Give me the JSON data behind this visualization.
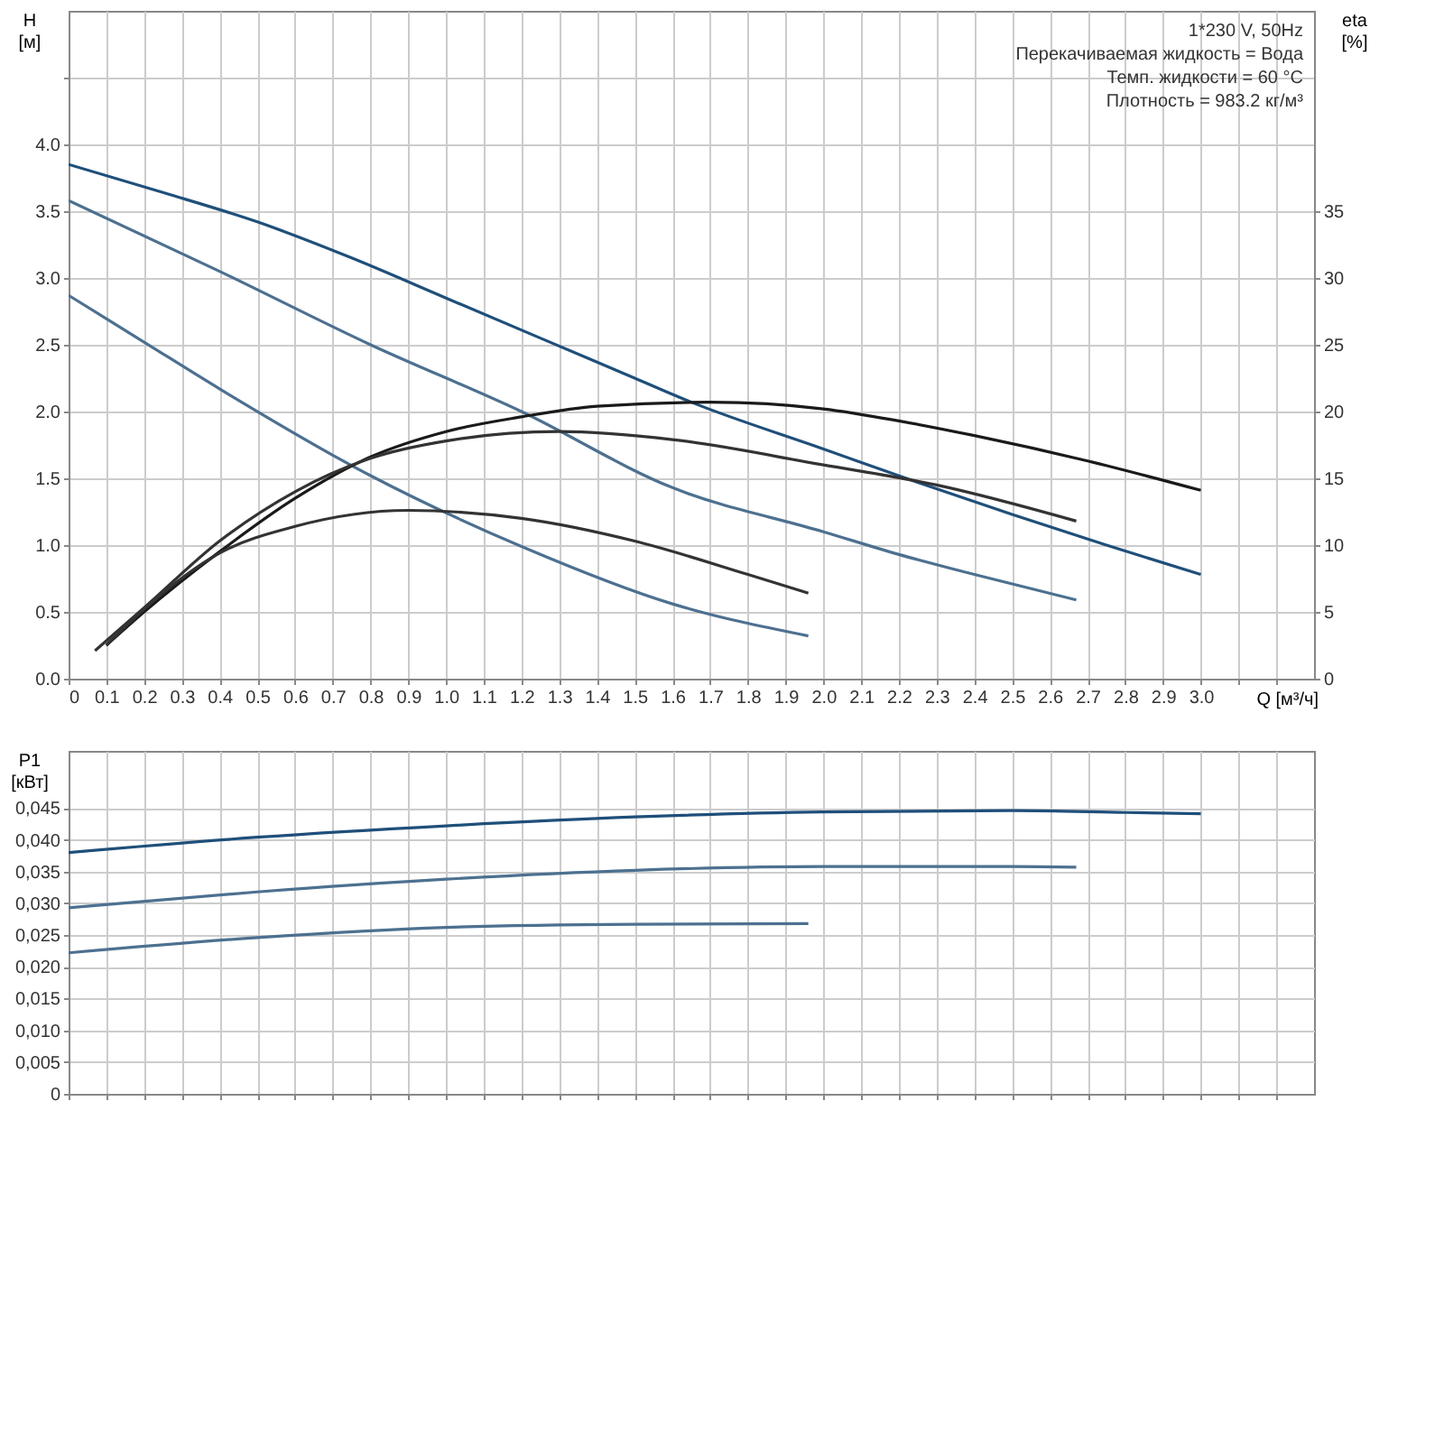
{
  "chart_data": [
    {
      "type": "line",
      "xlabel": "Q [м³/ч]",
      "ylabel": "H [м]",
      "y2label": "eta [%]",
      "grid": true,
      "annotations": [
        "1*230 V, 50Hz",
        "Перекачиваемая жидкость = Вода",
        "Темп. жидкости = 60 °C",
        "Плотность = 983.2 кг/м³"
      ],
      "xlim": [
        0,
        3.3
      ],
      "xticks": [
        0,
        0.1,
        0.2,
        0.3,
        0.4,
        0.5,
        0.6,
        0.7,
        0.8,
        0.9,
        {
          "value": 1.0,
          "label": "1.0"
        },
        1.1,
        1.2,
        1.3,
        1.4,
        1.5,
        1.6,
        1.7,
        1.8,
        1.9,
        {
          "value": 2.0,
          "label": "2.0"
        },
        2.1,
        2.2,
        2.3,
        2.4,
        2.5,
        2.6,
        2.7,
        2.8,
        2.9,
        {
          "value": 3.0,
          "label": "3.0"
        },
        {
          "value": 3.1,
          "label": null
        },
        {
          "value": 3.2,
          "label": null
        }
      ],
      "ylim": [
        0,
        5
      ],
      "yticks": [
        {
          "value": 0,
          "label": "0.0"
        },
        0.5,
        {
          "value": 1,
          "label": "1.0"
        },
        1.5,
        {
          "value": 2,
          "label": "2.0"
        },
        2.5,
        {
          "value": 3,
          "label": "3.0"
        },
        3.5,
        {
          "value": 4,
          "label": "4.0"
        },
        {
          "value": 4.5,
          "label": null
        }
      ],
      "y2lim": [
        0,
        50
      ],
      "y2ticks": [
        0,
        5,
        10,
        15,
        20,
        25,
        30,
        35
      ],
      "series": [
        {
          "color": "#1f4f7a",
          "x": [
            0,
            0.25,
            0.5,
            0.75,
            1.0,
            1.25,
            1.5,
            1.65,
            2.0,
            2.25,
            2.5,
            2.75,
            3.0
          ],
          "values": [
            3.85,
            3.64,
            3.42,
            3.15,
            2.85,
            2.55,
            2.25,
            2.07,
            1.72,
            1.47,
            1.23,
            1.0,
            0.78
          ]
        },
        {
          "color": "#4d7090",
          "x": [
            0,
            0.4,
            0.8,
            1.2,
            1.6,
            2.0,
            2.2,
            2.4,
            2.67
          ],
          "values": [
            3.58,
            3.05,
            2.5,
            2.0,
            1.43,
            1.1,
            0.93,
            0.78,
            0.59
          ]
        },
        {
          "color": "#4d7090",
          "x": [
            0,
            0.2,
            0.4,
            0.8,
            1.2,
            1.6,
            1.96
          ],
          "values": [
            2.87,
            2.52,
            2.17,
            1.52,
            0.99,
            0.56,
            0.32
          ]
        },
        {
          "color": "#1a1a1a",
          "axis": "y2",
          "x": [
            0.1,
            0.2,
            0.4,
            0.6,
            0.8,
            1.0,
            1.2,
            1.4,
            1.7,
            2.0,
            2.2,
            2.4,
            2.7,
            3.0
          ],
          "values": [
            2.5,
            5.0,
            9.5,
            13.5,
            16.6,
            18.5,
            19.6,
            20.4,
            20.7,
            20.2,
            19.3,
            18.2,
            16.3,
            14.1
          ]
        },
        {
          "color": "#333333",
          "axis": "y2",
          "x": [
            0.07,
            0.2,
            0.4,
            0.6,
            0.8,
            1.0,
            1.3,
            1.6,
            2.0,
            2.3,
            2.67
          ],
          "values": [
            2.1,
            5.3,
            10.3,
            14.0,
            16.5,
            17.8,
            18.5,
            17.9,
            16.0,
            14.5,
            11.8
          ]
        },
        {
          "color": "#333333",
          "axis": "y2",
          "x": [
            0.1,
            0.2,
            0.4,
            0.6,
            0.9,
            1.2,
            1.5,
            1.8,
            1.96
          ],
          "values": [
            2.5,
            5.2,
            9.4,
            11.4,
            12.6,
            12.0,
            10.3,
            7.8,
            6.4
          ]
        }
      ]
    },
    {
      "type": "line",
      "ylabel": "P1 [кВт]",
      "grid": true,
      "tick_labels": "y",
      "xlim": [
        0,
        3.3
      ],
      "xticks": [
        0,
        0.1,
        0.2,
        0.3,
        0.4,
        0.5,
        0.6,
        0.7,
        0.8,
        0.9,
        1,
        1.1,
        1.2,
        1.3,
        1.4,
        1.5,
        1.6,
        1.7,
        1.8,
        1.9,
        2,
        2.1,
        2.2,
        2.3,
        2.4,
        2.5,
        2.6,
        2.7,
        2.8,
        2.9,
        3,
        3.1,
        3.2
      ],
      "ylim": [
        0,
        0.054
      ],
      "yticks": [
        0,
        {
          "value": 0.005,
          "label": "0,005"
        },
        {
          "value": 0.01,
          "label": "0,010"
        },
        {
          "value": 0.015,
          "label": "0,015"
        },
        {
          "value": 0.02,
          "label": "0,020"
        },
        {
          "value": 0.025,
          "label": "0,025"
        },
        {
          "value": 0.03,
          "label": "0,030"
        },
        {
          "value": 0.035,
          "label": "0,035"
        },
        {
          "value": 0.04,
          "label": "0,040"
        },
        {
          "value": 0.045,
          "label": "0,045"
        }
      ],
      "series": [
        {
          "color": "#1f4f7a",
          "x": [
            0,
            0.5,
            1.0,
            1.5,
            2.0,
            2.5,
            2.8,
            3.0
          ],
          "values": [
            0.038,
            0.0404,
            0.0422,
            0.0436,
            0.0444,
            0.0446,
            0.0443,
            0.0441
          ]
        },
        {
          "color": "#4d7090",
          "x": [
            0,
            0.5,
            1.0,
            1.5,
            2.0,
            2.5,
            2.67
          ],
          "values": [
            0.0293,
            0.0318,
            0.0338,
            0.0352,
            0.0358,
            0.0358,
            0.0357
          ]
        },
        {
          "color": "#4d7090",
          "x": [
            0,
            0.5,
            1.0,
            1.5,
            1.96
          ],
          "values": [
            0.0222,
            0.0246,
            0.0262,
            0.0267,
            0.0268
          ]
        }
      ]
    }
  ]
}
